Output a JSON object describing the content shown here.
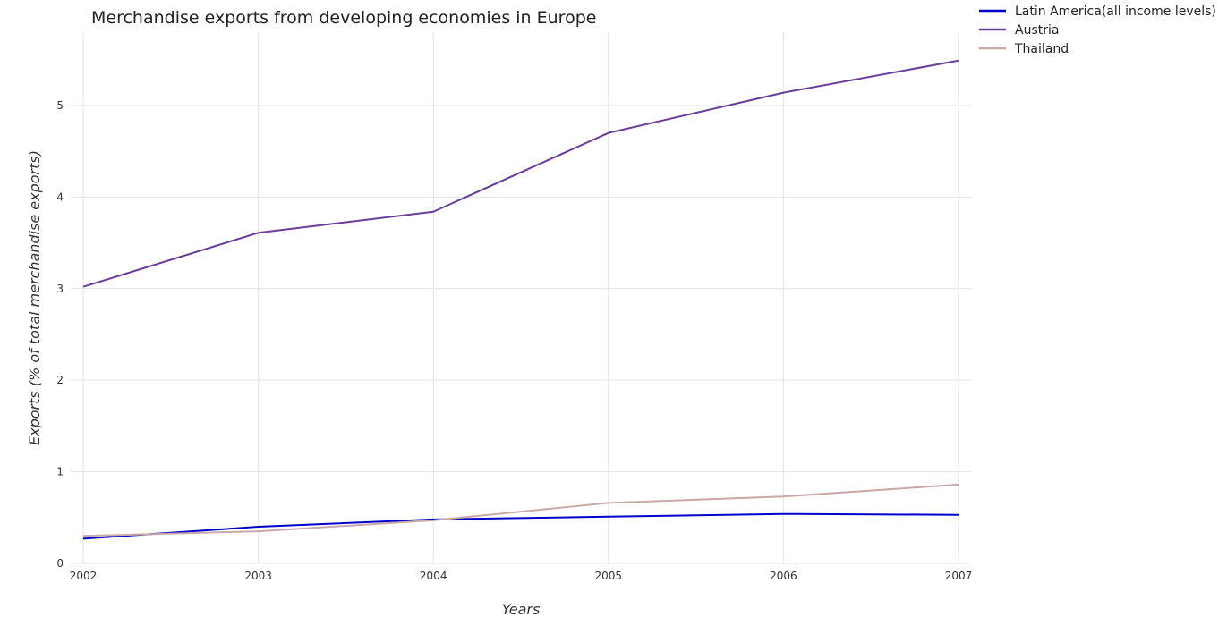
{
  "chart_data": {
    "type": "line",
    "title": "Merchandise exports from developing economies in Europe",
    "xlabel": "Years",
    "ylabel": "Exports (% of total merchandise exports)",
    "categories": [
      "2002",
      "2003",
      "2004",
      "2005",
      "2006",
      "2007"
    ],
    "ylim": [
      0,
      5.8
    ],
    "yticks": [
      0,
      1,
      2,
      3,
      4,
      5
    ],
    "grid": true,
    "legend_position": "top-right",
    "series": [
      {
        "name": "Latin America(all income levels)",
        "color": "#0000cc",
        "values": [
          0.27,
          0.4,
          0.48,
          0.51,
          0.54,
          0.53
        ]
      },
      {
        "name": "Austria",
        "color": "#6a3d9a",
        "values": [
          3.02,
          3.61,
          3.84,
          4.7,
          5.14,
          5.49
        ]
      },
      {
        "name": "Thailand",
        "color": "#c9a9a6",
        "values": [
          0.3,
          0.35,
          0.47,
          0.66,
          0.73,
          0.86
        ]
      }
    ]
  }
}
